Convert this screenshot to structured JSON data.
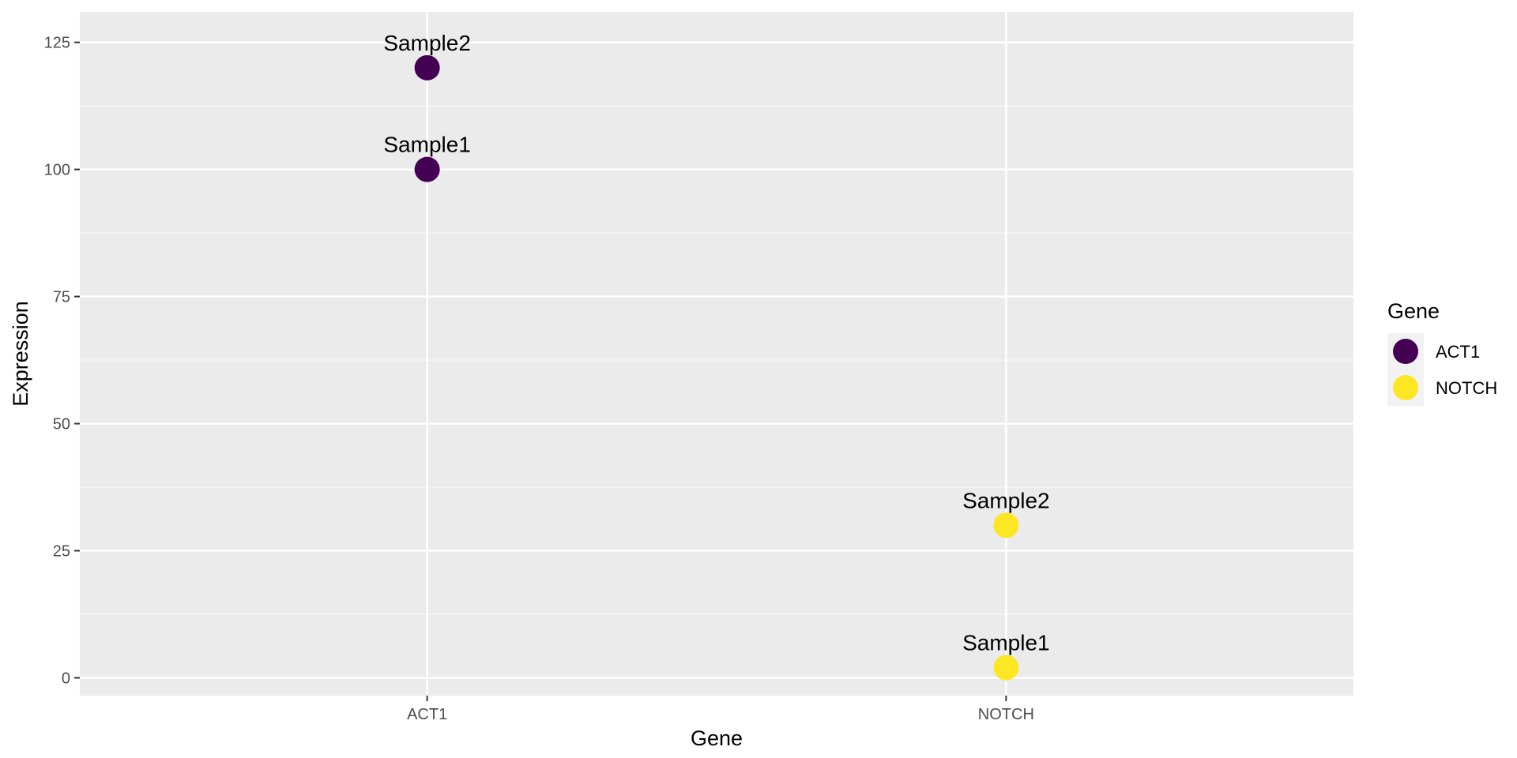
{
  "chart_data": {
    "type": "scatter",
    "xlabel": "Gene",
    "ylabel": "Expression",
    "categories": [
      "ACT1",
      "NOTCH"
    ],
    "ylim": [
      -3.5,
      131
    ],
    "yticks": [
      0,
      25,
      50,
      75,
      100,
      125
    ],
    "grid": true,
    "legend": {
      "title": "Gene",
      "placement": "right",
      "entries": [
        {
          "name": "ACT1",
          "color": "#440154"
        },
        {
          "name": "NOTCH",
          "color": "#FDE725"
        }
      ]
    },
    "points": [
      {
        "x": "ACT1",
        "y": 100,
        "label": "Sample1",
        "color": "#440154"
      },
      {
        "x": "ACT1",
        "y": 120,
        "label": "Sample2",
        "color": "#440154"
      },
      {
        "x": "NOTCH",
        "y": 2,
        "label": "Sample1",
        "color": "#FDE725"
      },
      {
        "x": "NOTCH",
        "y": 30,
        "label": "Sample2",
        "color": "#FDE725"
      }
    ]
  },
  "colors": {
    "panel_background": "#EBEBEB",
    "grid_major": "#FFFFFF",
    "grid_minor": "#F5F5F5"
  }
}
